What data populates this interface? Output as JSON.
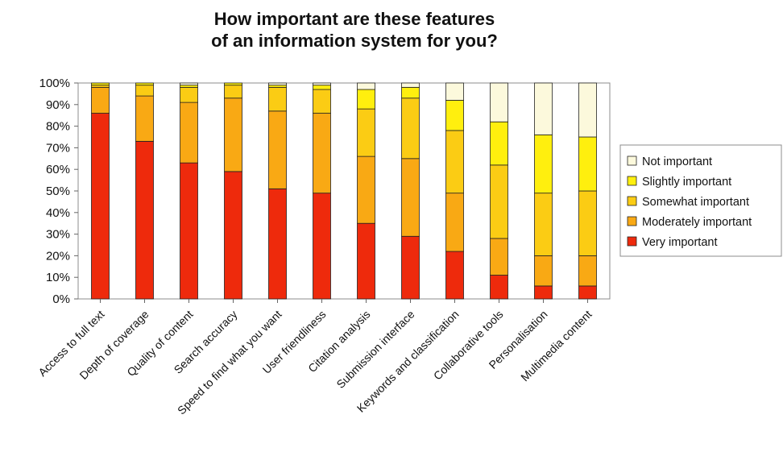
{
  "chart_data": {
    "type": "bar",
    "stacked": true,
    "title_lines": [
      "How important are these features",
      "of an information system for you?"
    ],
    "categories": [
      "Access to full text",
      "Depth of coverage",
      "Quality of content",
      "Search accuracy",
      "Speed to find what you want",
      "User friendliness",
      "Citation analysis",
      "Submission interface",
      "Keywords and classification",
      "Collaborative tools",
      "Personalisation",
      "Multimedia content"
    ],
    "series": [
      {
        "name": "Very important",
        "color": "#ee2a0c",
        "values": [
          86,
          73,
          63,
          59,
          51,
          49,
          35,
          29,
          22,
          11,
          6,
          6
        ]
      },
      {
        "name": "Moderately important",
        "color": "#f9a914",
        "values": [
          12,
          21,
          28,
          34,
          36,
          37,
          31,
          36,
          27,
          17,
          14,
          14
        ]
      },
      {
        "name": "Somewhat important",
        "color": "#fbcc14",
        "values": [
          1,
          5,
          7,
          6,
          11,
          11,
          22,
          28,
          29,
          34,
          29,
          30
        ]
      },
      {
        "name": "Slightly important",
        "color": "#ffef0e",
        "values": [
          1,
          1,
          1,
          1,
          1,
          2,
          9,
          5,
          14,
          20,
          27,
          25
        ]
      },
      {
        "name": "Not important",
        "color": "#fcf9dc",
        "values": [
          0,
          0,
          1,
          0,
          1,
          1,
          3,
          2,
          8,
          18,
          24,
          25
        ]
      }
    ],
    "legend_order": [
      "Not important",
      "Slightly important",
      "Somewhat important",
      "Moderately important",
      "Very important"
    ],
    "yticks": [
      "0%",
      "10%",
      "20%",
      "30%",
      "40%",
      "50%",
      "60%",
      "70%",
      "80%",
      "90%",
      "100%"
    ],
    "ylim": [
      0,
      100
    ],
    "grid": false,
    "legend_position": "right"
  }
}
